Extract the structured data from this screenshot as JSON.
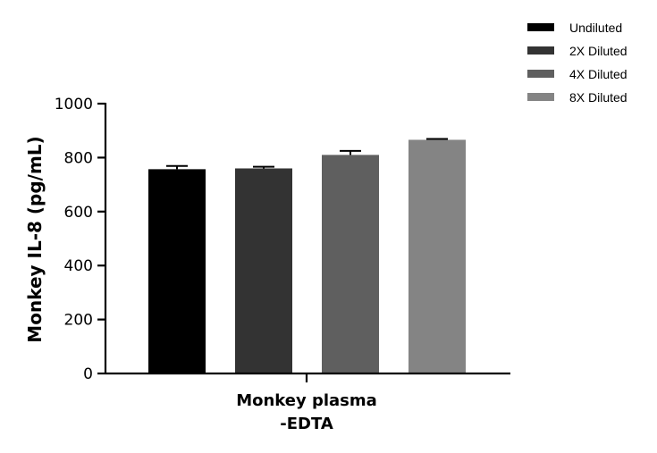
{
  "chart_data": {
    "type": "bar",
    "ylabel": "Monkey IL-8 (pg/mL)",
    "category_label_lines": [
      "Monkey plasma",
      "-EDTA"
    ],
    "ylim": [
      0,
      1000
    ],
    "yticks": [
      0,
      200,
      400,
      600,
      800,
      1000
    ],
    "legend_position": "top-right",
    "series": [
      {
        "name": "Undiluted",
        "value": 757,
        "error": 12,
        "color": "#000000"
      },
      {
        "name": "2X Diluted",
        "value": 760,
        "error": 6,
        "color": "#333333"
      },
      {
        "name": "4X Diluted",
        "value": 810,
        "error": 15,
        "color": "#5f5f5f"
      },
      {
        "name": "8X Diluted",
        "value": 866,
        "error": 3,
        "color": "#848484"
      }
    ]
  }
}
